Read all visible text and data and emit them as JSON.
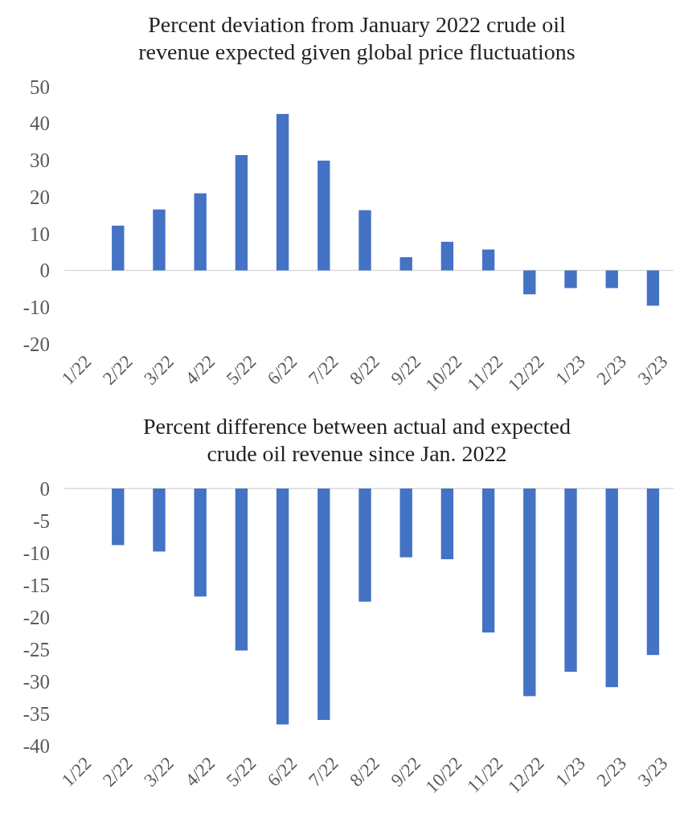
{
  "chart_data": [
    {
      "type": "bar",
      "title": "Percent deviation from January 2022 crude oil revenue expected given global price fluctuations",
      "categories": [
        "1/22",
        "2/22",
        "3/22",
        "4/22",
        "5/22",
        "6/22",
        "7/22",
        "8/22",
        "9/22",
        "10/22",
        "11/22",
        "12/22",
        "1/23",
        "2/23",
        "3/23"
      ],
      "series": [
        {
          "color": "#4472c4",
          "values": [
            0,
            12.2,
            16.6,
            21.0,
            31.4,
            42.6,
            29.9,
            16.4,
            3.6,
            7.8,
            5.7,
            -6.5,
            -4.8,
            -4.8,
            -9.6
          ]
        }
      ],
      "ylim": [
        -20,
        50
      ],
      "yticks": [
        -20,
        -10,
        0,
        10,
        20,
        30,
        40,
        50
      ]
    },
    {
      "type": "bar",
      "title": "Percent difference between actual and expected crude oil revenue since Jan. 2022",
      "categories": [
        "1/22",
        "2/22",
        "3/22",
        "4/22",
        "5/22",
        "6/22",
        "7/22",
        "8/22",
        "9/22",
        "10/22",
        "11/22",
        "12/22",
        "1/23",
        "2/23",
        "3/23"
      ],
      "series": [
        {
          "color": "#4472c4",
          "values": [
            0,
            -8.8,
            -9.8,
            -16.8,
            -25.2,
            -36.7,
            -36.0,
            -17.6,
            -10.7,
            -11.0,
            -22.4,
            -32.3,
            -28.5,
            -30.9,
            -25.9
          ]
        }
      ],
      "ylim": [
        -40,
        0
      ],
      "yticks": [
        -40,
        -35,
        -30,
        -25,
        -20,
        -15,
        -10,
        -5,
        0
      ]
    }
  ]
}
